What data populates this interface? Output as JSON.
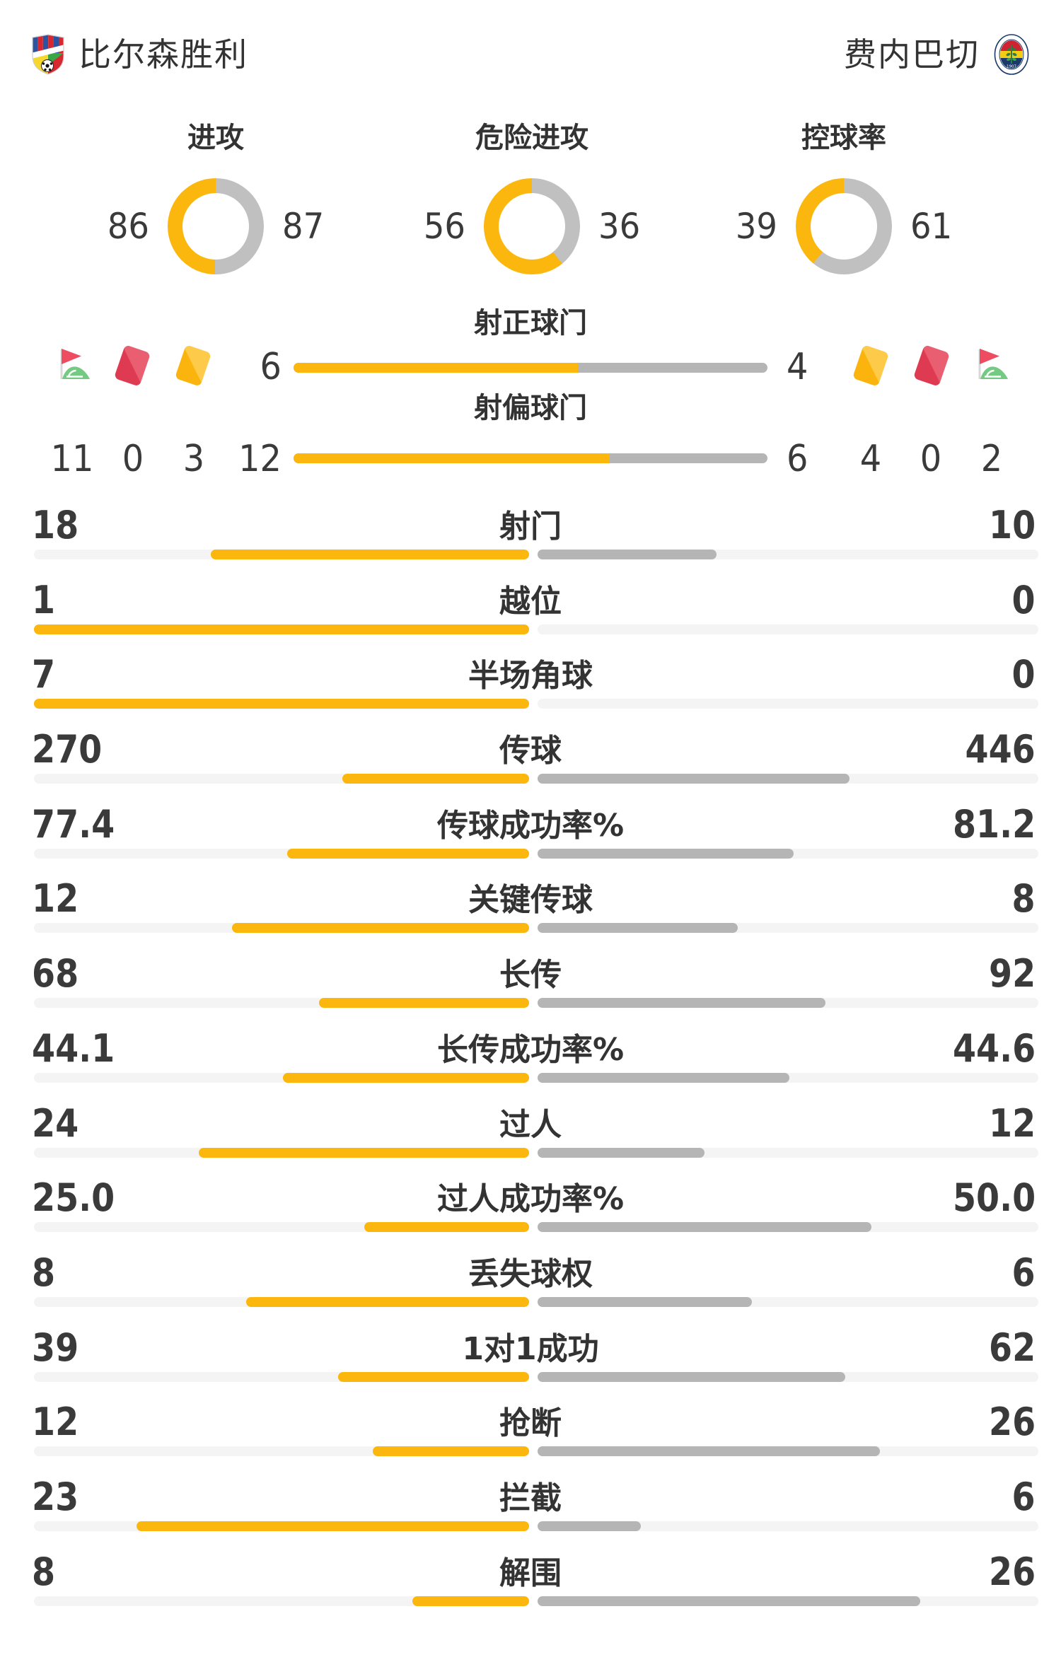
{
  "header": {
    "home": {
      "name": "比尔森胜利"
    },
    "away": {
      "name": "费内巴切"
    }
  },
  "chart_data": {
    "type": "match-stats",
    "donuts": [
      {
        "key": "attacks",
        "title": "进攻",
        "home": "86",
        "away": "87"
      },
      {
        "key": "dangerous-attacks",
        "title": "危险进攻",
        "home": "56",
        "away": "36"
      },
      {
        "key": "possession",
        "title": "控球率",
        "home": "39",
        "away": "61"
      }
    ],
    "duels": [
      {
        "key": "shots-on-target",
        "title": "射正球门",
        "home": "6",
        "away": "4"
      },
      {
        "key": "shots-off-target",
        "title": "射偏球门",
        "home": "12",
        "away": "6"
      }
    ],
    "discipline": {
      "home": {
        "corner_kicks": "11",
        "red_cards": "0",
        "yellow_cards": "3"
      },
      "away": {
        "yellow_cards": "4",
        "red_cards": "0",
        "corner_kicks": "2"
      }
    },
    "stats": [
      {
        "label": "射门",
        "home": "18",
        "away": "10"
      },
      {
        "label": "越位",
        "home": "1",
        "away": "0"
      },
      {
        "label": "半场角球",
        "home": "7",
        "away": "0"
      },
      {
        "label": "传球",
        "home": "270",
        "away": "446"
      },
      {
        "label": "传球成功率%",
        "home": "77.4",
        "away": "81.2"
      },
      {
        "label": "关键传球",
        "home": "12",
        "away": "8"
      },
      {
        "label": "长传",
        "home": "68",
        "away": "92"
      },
      {
        "label": "长传成功率%",
        "home": "44.1",
        "away": "44.6"
      },
      {
        "label": "过人",
        "home": "24",
        "away": "12"
      },
      {
        "label": "过人成功率%",
        "home": "25.0",
        "away": "50.0"
      },
      {
        "label": "丢失球权",
        "home": "8",
        "away": "6"
      },
      {
        "label": "1对1成功",
        "home": "39",
        "away": "62"
      },
      {
        "label": "抢断",
        "home": "12",
        "away": "26"
      },
      {
        "label": "拦截",
        "home": "23",
        "away": "6"
      },
      {
        "label": "解围",
        "home": "8",
        "away": "26"
      }
    ]
  },
  "colors": {
    "accent_yellow": "#FBB70D",
    "donut_gray": "#C0C0C0",
    "bar_gray": "#B5B5B5",
    "bar_track": "#F4F4F4",
    "text": "#3A3A3A",
    "card_red_light": "#EA5E71",
    "card_red_dark": "#DE3B52",
    "card_yellow_light": "#FDCB49",
    "card_yellow_dark": "#FBB40E",
    "flag_red": "#EE4D61",
    "flag_green": "#74CA82"
  }
}
